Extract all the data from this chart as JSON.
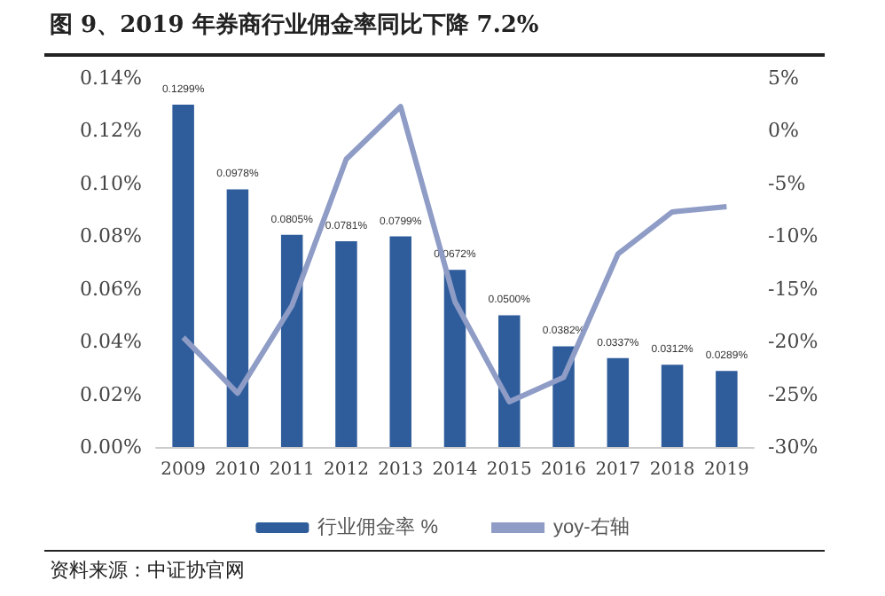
{
  "chart_data": {
    "type": "bar",
    "title": "图 9、2019 年券商行业佣金率同比下降 7.2%",
    "annotations": [
      "资料来源：中证协官网"
    ],
    "categories": [
      "2009",
      "2010",
      "2011",
      "2012",
      "2013",
      "2014",
      "2015",
      "2016",
      "2017",
      "2018",
      "2019"
    ],
    "series": [
      {
        "name": "行业佣金率 %",
        "color": "#2f5d9b",
        "values": [
          0.1299,
          0.0978,
          0.0805,
          0.0781,
          0.0799,
          0.0672,
          0.05,
          0.0382,
          0.0337,
          0.0312,
          0.0289
        ],
        "value_labels": [
          "0.1299%",
          "0.0978%",
          "0.0805%",
          "0.0781%",
          "0.0799%",
          "0.0672%",
          "0.0500%",
          "0.0382%",
          "0.0337%",
          "0.0312%",
          "0.0289%"
        ]
      },
      {
        "name": "yoy-右轴",
        "type": "line",
        "axis": "y2",
        "color": "#8e9cc6",
        "values": [
          -19.6,
          -24.9,
          -16.6,
          -2.7,
          2.3,
          -16.2,
          -25.7,
          -23.4,
          -11.7,
          -7.7,
          -7.2
        ]
      }
    ],
    "ylim": [
      0,
      0.14
    ],
    "yticks": [
      {
        "value": 0,
        "label": "0.00%"
      },
      {
        "value": 0.02,
        "label": "0.02%"
      },
      {
        "value": 0.04,
        "label": "0.04%"
      },
      {
        "value": 0.06,
        "label": "0.06%"
      },
      {
        "value": 0.08,
        "label": "0.08%"
      },
      {
        "value": 0.1,
        "label": "0.10%"
      },
      {
        "value": 0.12,
        "label": "0.12%"
      },
      {
        "value": 0.14,
        "label": "0.14%"
      }
    ],
    "y2lim": [
      -30,
      5
    ],
    "y2ticks": [
      {
        "value": -30,
        "label": "-30%"
      },
      {
        "value": -25,
        "label": "-25%"
      },
      {
        "value": -20,
        "label": "-20%"
      },
      {
        "value": -15,
        "label": "-15%"
      },
      {
        "value": -10,
        "label": "-10%"
      },
      {
        "value": -5,
        "label": "-5%"
      },
      {
        "value": 0,
        "label": "0%"
      },
      {
        "value": 5,
        "label": "5%"
      }
    ],
    "grid": false,
    "legend": "bottom",
    "marker": "none",
    "line_style": "solid"
  }
}
